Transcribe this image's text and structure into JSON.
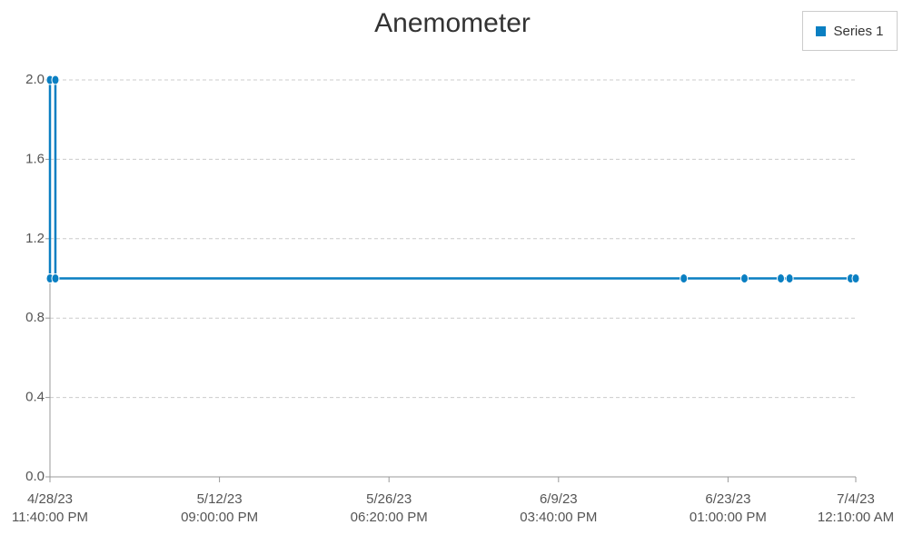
{
  "chart_data": {
    "type": "line",
    "title": "Anemometer",
    "x": [
      "2023-04-28T23:40",
      "2023-04-28T23:40",
      "2023-04-29T10:20",
      "2023-04-29T10:20",
      "2023-06-19T22:00",
      "2023-06-24T21:20",
      "2023-06-27T20:50",
      "2023-06-28T14:00",
      "2023-07-03T14:10",
      "2023-07-04T00:10"
    ],
    "series": [
      {
        "name": "Series 1",
        "color": "#0a7fc2",
        "values": [
          1.0,
          2.0,
          2.0,
          1.0,
          1.0,
          1.0,
          1.0,
          1.0,
          1.0,
          1.0
        ]
      }
    ],
    "xlim": [
      "2023-04-28T23:40",
      "2023-07-04T00:10"
    ],
    "xticks": [
      {
        "value": "2023-04-28T23:40",
        "label": "4/28/23\n11:40:00 PM"
      },
      {
        "value": "2023-05-12T21:00",
        "label": "5/12/23\n09:00:00 PM"
      },
      {
        "value": "2023-05-26T18:20",
        "label": "5/26/23\n06:20:00 PM"
      },
      {
        "value": "2023-06-09T15:40",
        "label": "6/9/23\n03:40:00 PM"
      },
      {
        "value": "2023-06-23T13:00",
        "label": "6/23/23\n01:00:00 PM"
      },
      {
        "value": "2023-07-04T00:10",
        "label": "7/4/23\n12:10:00 AM"
      }
    ],
    "ylim": [
      0,
      2.0
    ],
    "yticks": [
      {
        "value": 0,
        "label": "0.0"
      },
      0.4,
      0.8,
      1.2,
      1.6,
      {
        "value": 2.0,
        "label": "2.0"
      }
    ],
    "grid": true,
    "legend": "top-right"
  }
}
